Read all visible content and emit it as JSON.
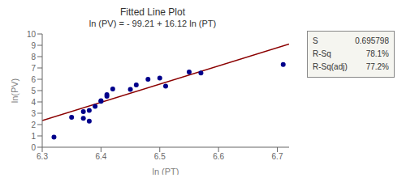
{
  "chart_data": {
    "type": "scatter",
    "title": "Fitted Line Plot",
    "subtitle": "ln (PV) = - 99.21 + 16.12 ln (PT)",
    "x_label": "ln (PT)",
    "y_label": "ln(PV)",
    "xlim": [
      6.3,
      6.72
    ],
    "ylim": [
      0,
      10
    ],
    "xticks": [
      6.3,
      6.4,
      6.5,
      6.6,
      6.7
    ],
    "yticks": [
      0,
      1,
      2,
      3,
      4,
      5,
      6,
      7,
      8,
      9,
      10
    ],
    "grid": false,
    "series": [
      {
        "type": "scatter",
        "color": "#00008B",
        "x": [
          6.32,
          6.35,
          6.37,
          6.37,
          6.38,
          6.38,
          6.39,
          6.4,
          6.4,
          6.41,
          6.41,
          6.42,
          6.45,
          6.46,
          6.48,
          6.5,
          6.51,
          6.55,
          6.57,
          6.71
        ],
        "values": [
          0.9,
          2.65,
          3.15,
          2.55,
          3.25,
          2.3,
          3.6,
          4.05,
          4.1,
          4.65,
          4.5,
          5.15,
          5.1,
          5.5,
          6.0,
          6.1,
          5.4,
          6.65,
          6.55,
          7.3
        ]
      },
      {
        "type": "line",
        "color": "#8B0000",
        "x": [
          6.3,
          6.72
        ],
        "values": [
          2.346,
          9.1164
        ]
      }
    ],
    "annotations": [
      {
        "label": "S",
        "text": "0.695798"
      },
      {
        "label": "R-Sq",
        "text": "78.1%"
      },
      {
        "label": "R-Sq(adj)",
        "text": "77.2%"
      }
    ]
  }
}
